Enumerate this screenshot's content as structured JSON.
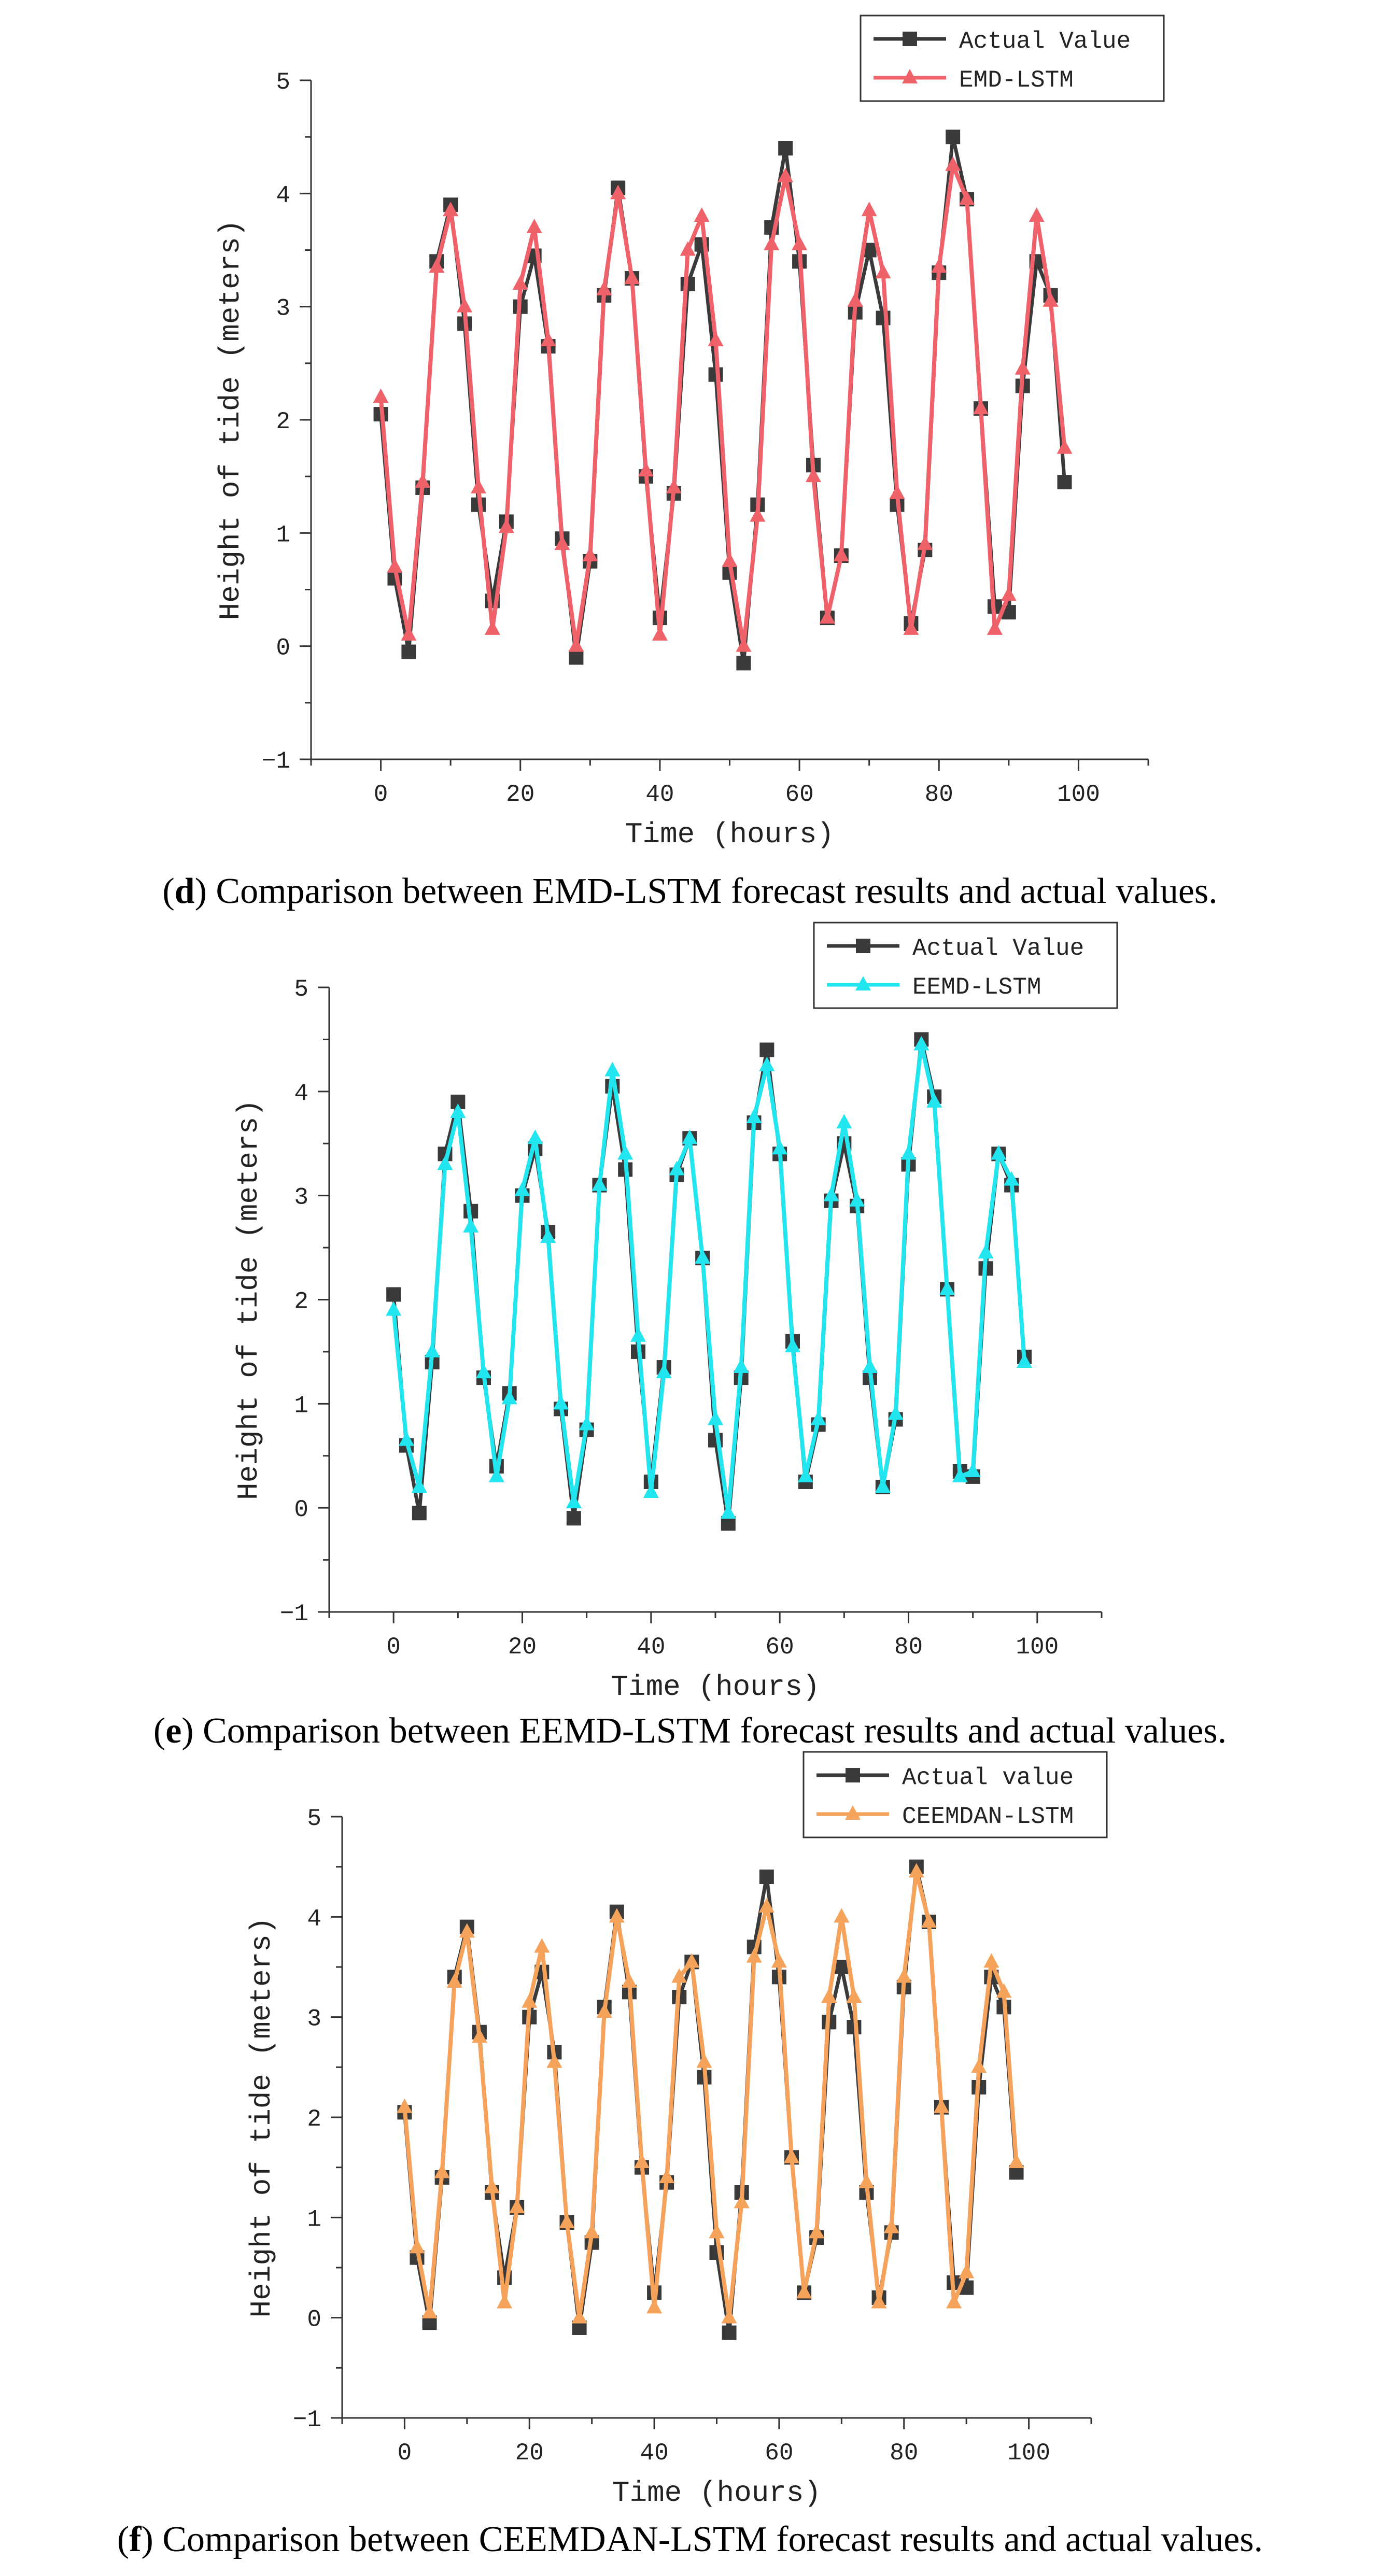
{
  "chart_data": [
    {
      "type": "line",
      "panel": "d",
      "caption_letter": "d",
      "caption_text": "Comparison between EMD-LSTM forecast results and actual values.",
      "xlabel": "Time (hours)",
      "ylabel": "Height of tide (meters)",
      "xlim": [
        -10,
        110
      ],
      "ylim": [
        -1,
        5
      ],
      "xticks": [
        0,
        20,
        40,
        60,
        80,
        100
      ],
      "yticks": [
        -1,
        0,
        1,
        2,
        3,
        4,
        5
      ],
      "legend_position": "top-right",
      "series": [
        {
          "name": "Actual Value",
          "color": "#3a3a3a",
          "marker": "square",
          "x": [
            0,
            2,
            4,
            6,
            8,
            10,
            12,
            14,
            16,
            18,
            20,
            22,
            24,
            26,
            28,
            30,
            32,
            34,
            36,
            38,
            40,
            42,
            44,
            46,
            48,
            50,
            52,
            54,
            56,
            58,
            60,
            62,
            64,
            66,
            68,
            70,
            72,
            74,
            76,
            78,
            80,
            82,
            84,
            86,
            88,
            90,
            92,
            94,
            96,
            98
          ],
          "y": [
            2.05,
            0.6,
            -0.05,
            1.4,
            3.4,
            3.9,
            2.85,
            1.25,
            0.4,
            1.1,
            3.0,
            3.45,
            2.65,
            0.95,
            -0.1,
            0.75,
            3.1,
            4.05,
            3.25,
            1.5,
            0.25,
            1.35,
            3.2,
            3.55,
            2.4,
            0.65,
            -0.15,
            1.25,
            3.7,
            4.4,
            3.4,
            1.6,
            0.25,
            0.8,
            2.95,
            3.5,
            2.9,
            1.25,
            0.2,
            0.85,
            3.3,
            4.5,
            3.95,
            2.1,
            0.35,
            0.3,
            2.3,
            3.4,
            3.1,
            1.45
          ]
        },
        {
          "name": "EMD-LSTM",
          "color": "#f0626a",
          "marker": "triangle",
          "x": [
            0,
            2,
            4,
            6,
            8,
            10,
            12,
            14,
            16,
            18,
            20,
            22,
            24,
            26,
            28,
            30,
            32,
            34,
            36,
            38,
            40,
            42,
            44,
            46,
            48,
            50,
            52,
            54,
            56,
            58,
            60,
            62,
            64,
            66,
            68,
            70,
            72,
            74,
            76,
            78,
            80,
            82,
            84,
            86,
            88,
            90,
            92,
            94,
            96,
            98
          ],
          "y": [
            2.2,
            0.7,
            0.1,
            1.45,
            3.35,
            3.85,
            3.0,
            1.4,
            0.15,
            1.05,
            3.2,
            3.7,
            2.7,
            0.9,
            0.0,
            0.8,
            3.15,
            4.0,
            3.25,
            1.55,
            0.1,
            1.4,
            3.5,
            3.8,
            2.7,
            0.75,
            0.0,
            1.15,
            3.55,
            4.15,
            3.55,
            1.5,
            0.25,
            0.8,
            3.05,
            3.85,
            3.3,
            1.35,
            0.15,
            0.9,
            3.35,
            4.25,
            3.95,
            2.1,
            0.15,
            0.45,
            2.45,
            3.8,
            3.05,
            1.75
          ]
        }
      ]
    },
    {
      "type": "line",
      "panel": "e",
      "caption_letter": "e",
      "caption_text": "Comparison between EEMD-LSTM forecast results and actual values.",
      "xlabel": "Time (hours)",
      "ylabel": "Height of tide (meters)",
      "xlim": [
        -10,
        110
      ],
      "ylim": [
        -1,
        5
      ],
      "xticks": [
        0,
        20,
        40,
        60,
        80,
        100
      ],
      "yticks": [
        -1,
        0,
        1,
        2,
        3,
        4,
        5
      ],
      "legend_position": "top-right",
      "series": [
        {
          "name": "Actual Value",
          "color": "#3a3a3a",
          "marker": "square",
          "x": [
            0,
            2,
            4,
            6,
            8,
            10,
            12,
            14,
            16,
            18,
            20,
            22,
            24,
            26,
            28,
            30,
            32,
            34,
            36,
            38,
            40,
            42,
            44,
            46,
            48,
            50,
            52,
            54,
            56,
            58,
            60,
            62,
            64,
            66,
            68,
            70,
            72,
            74,
            76,
            78,
            80,
            82,
            84,
            86,
            88,
            90,
            92,
            94,
            96,
            98
          ],
          "y": [
            2.05,
            0.6,
            -0.05,
            1.4,
            3.4,
            3.9,
            2.85,
            1.25,
            0.4,
            1.1,
            3.0,
            3.45,
            2.65,
            0.95,
            -0.1,
            0.75,
            3.1,
            4.05,
            3.25,
            1.5,
            0.25,
            1.35,
            3.2,
            3.55,
            2.4,
            0.65,
            -0.15,
            1.25,
            3.7,
            4.4,
            3.4,
            1.6,
            0.25,
            0.8,
            2.95,
            3.5,
            2.9,
            1.25,
            0.2,
            0.85,
            3.3,
            4.5,
            3.95,
            2.1,
            0.35,
            0.3,
            2.3,
            3.4,
            3.1,
            1.45
          ]
        },
        {
          "name": "EEMD-LSTM",
          "color": "#22e6ef",
          "marker": "triangle",
          "x": [
            0,
            2,
            4,
            6,
            8,
            10,
            12,
            14,
            16,
            18,
            20,
            22,
            24,
            26,
            28,
            30,
            32,
            34,
            36,
            38,
            40,
            42,
            44,
            46,
            48,
            50,
            52,
            54,
            56,
            58,
            60,
            62,
            64,
            66,
            68,
            70,
            72,
            74,
            76,
            78,
            80,
            82,
            84,
            86,
            88,
            90,
            92,
            94,
            96,
            98
          ],
          "y": [
            1.9,
            0.65,
            0.2,
            1.5,
            3.3,
            3.8,
            2.7,
            1.3,
            0.3,
            1.05,
            3.05,
            3.55,
            2.6,
            1.0,
            0.05,
            0.8,
            3.1,
            4.2,
            3.4,
            1.65,
            0.15,
            1.3,
            3.25,
            3.55,
            2.4,
            0.85,
            -0.05,
            1.35,
            3.75,
            4.25,
            3.45,
            1.55,
            0.3,
            0.85,
            3.0,
            3.7,
            2.95,
            1.35,
            0.2,
            0.9,
            3.4,
            4.45,
            3.9,
            2.1,
            0.3,
            0.35,
            2.45,
            3.4,
            3.15,
            1.4
          ]
        }
      ]
    },
    {
      "type": "line",
      "panel": "f",
      "caption_letter": "f",
      "caption_text": "Comparison between CEEMDAN-LSTM forecast results and actual values.",
      "xlabel": "Time (hours)",
      "ylabel": "Height of tide (meters)",
      "xlim": [
        -10,
        110
      ],
      "ylim": [
        -1,
        5
      ],
      "xticks": [
        0,
        20,
        40,
        60,
        80,
        100
      ],
      "yticks": [
        -1,
        0,
        1,
        2,
        3,
        4,
        5
      ],
      "legend_position": "top-right",
      "series": [
        {
          "name": "Actual value",
          "color": "#3a3a3a",
          "marker": "square",
          "x": [
            0,
            2,
            4,
            6,
            8,
            10,
            12,
            14,
            16,
            18,
            20,
            22,
            24,
            26,
            28,
            30,
            32,
            34,
            36,
            38,
            40,
            42,
            44,
            46,
            48,
            50,
            52,
            54,
            56,
            58,
            60,
            62,
            64,
            66,
            68,
            70,
            72,
            74,
            76,
            78,
            80,
            82,
            84,
            86,
            88,
            90,
            92,
            94,
            96,
            98
          ],
          "y": [
            2.05,
            0.6,
            -0.05,
            1.4,
            3.4,
            3.9,
            2.85,
            1.25,
            0.4,
            1.1,
            3.0,
            3.45,
            2.65,
            0.95,
            -0.1,
            0.75,
            3.1,
            4.05,
            3.25,
            1.5,
            0.25,
            1.35,
            3.2,
            3.55,
            2.4,
            0.65,
            -0.15,
            1.25,
            3.7,
            4.4,
            3.4,
            1.6,
            0.25,
            0.8,
            2.95,
            3.5,
            2.9,
            1.25,
            0.2,
            0.85,
            3.3,
            4.5,
            3.95,
            2.1,
            0.35,
            0.3,
            2.3,
            3.4,
            3.1,
            1.45
          ]
        },
        {
          "name": "CEEMDAN-LSTM",
          "color": "#f5a25a",
          "marker": "triangle",
          "x": [
            0,
            2,
            4,
            6,
            8,
            10,
            12,
            14,
            16,
            18,
            20,
            22,
            24,
            26,
            28,
            30,
            32,
            34,
            36,
            38,
            40,
            42,
            44,
            46,
            48,
            50,
            52,
            54,
            56,
            58,
            60,
            62,
            64,
            66,
            68,
            70,
            72,
            74,
            76,
            78,
            80,
            82,
            84,
            86,
            88,
            90,
            92,
            94,
            96,
            98
          ],
          "y": [
            2.1,
            0.7,
            0.05,
            1.45,
            3.35,
            3.85,
            2.8,
            1.3,
            0.15,
            1.1,
            3.15,
            3.7,
            2.55,
            0.95,
            0.0,
            0.85,
            3.05,
            4.0,
            3.35,
            1.55,
            0.1,
            1.4,
            3.4,
            3.55,
            2.55,
            0.85,
            0.0,
            1.15,
            3.6,
            4.1,
            3.55,
            1.6,
            0.25,
            0.85,
            3.2,
            4.0,
            3.2,
            1.35,
            0.15,
            0.9,
            3.4,
            4.45,
            3.95,
            2.1,
            0.15,
            0.45,
            2.5,
            3.55,
            3.25,
            1.55
          ]
        }
      ]
    }
  ]
}
